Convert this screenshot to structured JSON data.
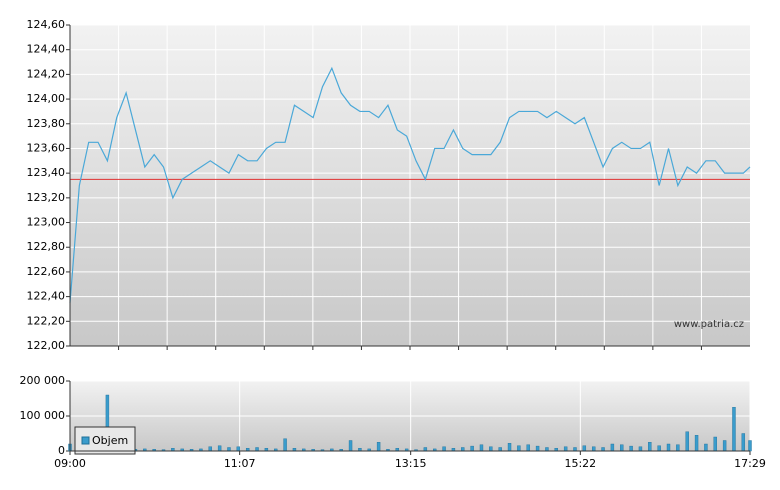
{
  "chart_data": [
    {
      "type": "line",
      "x": [
        "09:00",
        "09:07",
        "09:14",
        "09:21",
        "09:28",
        "09:35",
        "09:42",
        "09:49",
        "09:56",
        "10:03",
        "10:10",
        "10:17",
        "10:24",
        "10:31",
        "10:38",
        "10:45",
        "10:52",
        "10:59",
        "11:06",
        "11:13",
        "11:20",
        "11:27",
        "11:34",
        "11:41",
        "11:48",
        "11:55",
        "12:02",
        "12:09",
        "12:16",
        "12:23",
        "12:30",
        "12:37",
        "12:44",
        "12:51",
        "12:58",
        "13:05",
        "13:12",
        "13:19",
        "13:26",
        "13:33",
        "13:40",
        "13:47",
        "13:54",
        "14:01",
        "14:08",
        "14:15",
        "14:22",
        "14:29",
        "14:36",
        "14:43",
        "14:50",
        "14:57",
        "15:04",
        "15:11",
        "15:18",
        "15:25",
        "15:32",
        "15:39",
        "15:46",
        "15:53",
        "16:00",
        "16:07",
        "16:14",
        "16:21",
        "16:28",
        "16:35",
        "16:42",
        "16:49",
        "16:56",
        "17:03",
        "17:10",
        "17:17",
        "17:24",
        "17:29"
      ],
      "series": [
        {
          "color": "#4aa8d8",
          "values": [
            122.35,
            123.3,
            123.65,
            123.65,
            123.5,
            123.85,
            124.05,
            123.75,
            123.45,
            123.55,
            123.45,
            123.2,
            123.35,
            123.4,
            123.45,
            123.5,
            123.45,
            123.4,
            123.55,
            123.5,
            123.5,
            123.6,
            123.65,
            123.65,
            123.95,
            123.9,
            123.85,
            124.1,
            124.25,
            124.05,
            123.95,
            123.9,
            123.9,
            123.85,
            123.95,
            123.75,
            123.7,
            123.5,
            123.35,
            123.6,
            123.6,
            123.75,
            123.6,
            123.55,
            123.55,
            123.55,
            123.65,
            123.85,
            123.9,
            123.9,
            123.9,
            123.85,
            123.9,
            123.85,
            123.8,
            123.85,
            123.65,
            123.45,
            123.6,
            123.65,
            123.6,
            123.6,
            123.65,
            123.3,
            123.6,
            123.3,
            123.45,
            123.4,
            123.5,
            123.5,
            123.4,
            123.4,
            123.4,
            123.45
          ]
        }
      ],
      "xlim": [
        "09:00",
        "17:29"
      ],
      "ylim": [
        122,
        124.6
      ],
      "yticks": [
        {
          "value": 122,
          "label": "122,00"
        },
        {
          "value": 122.2,
          "label": "122,20"
        },
        {
          "value": 122.4,
          "label": "122,40"
        },
        {
          "value": 122.6,
          "label": "122,60"
        },
        {
          "value": 122.8,
          "label": "122,80"
        },
        {
          "value": 123,
          "label": "123,00"
        },
        {
          "value": 123.2,
          "label": "123,20"
        },
        {
          "value": 123.4,
          "label": "123,40"
        },
        {
          "value": 123.6,
          "label": "123,60"
        },
        {
          "value": 123.8,
          "label": "123,80"
        },
        {
          "value": 124,
          "label": "124,00"
        },
        {
          "value": 124.2,
          "label": "124,20"
        },
        {
          "value": 124.4,
          "label": "124,40"
        },
        {
          "value": 124.6,
          "label": "124,60"
        }
      ],
      "reference_line": {
        "value": 123.35,
        "color": "#e03030"
      },
      "annotation": "www.patria.cz",
      "grid": true
    },
    {
      "type": "bar",
      "x": [
        "09:00",
        "09:07",
        "09:14",
        "09:21",
        "09:28",
        "09:35",
        "09:42",
        "09:49",
        "09:56",
        "10:03",
        "10:10",
        "10:17",
        "10:24",
        "10:31",
        "10:38",
        "10:45",
        "10:52",
        "10:59",
        "11:06",
        "11:13",
        "11:20",
        "11:27",
        "11:34",
        "11:41",
        "11:48",
        "11:55",
        "12:02",
        "12:09",
        "12:16",
        "12:23",
        "12:30",
        "12:37",
        "12:44",
        "12:51",
        "12:58",
        "13:05",
        "13:12",
        "13:19",
        "13:26",
        "13:33",
        "13:40",
        "13:47",
        "13:54",
        "14:01",
        "14:08",
        "14:15",
        "14:22",
        "14:29",
        "14:36",
        "14:43",
        "14:50",
        "14:57",
        "15:04",
        "15:11",
        "15:18",
        "15:25",
        "15:32",
        "15:39",
        "15:46",
        "15:53",
        "16:00",
        "16:07",
        "16:14",
        "16:21",
        "16:28",
        "16:35",
        "16:42",
        "16:49",
        "16:56",
        "17:03",
        "17:10",
        "17:17",
        "17:24",
        "17:29"
      ],
      "series": [
        {
          "name": "Objem",
          "color": "#3a9ccc",
          "values": [
            20000,
            12000,
            8000,
            10000,
            160000,
            15000,
            8000,
            5000,
            6000,
            5000,
            4000,
            8000,
            6000,
            5000,
            6000,
            12000,
            15000,
            10000,
            12000,
            8000,
            10000,
            8000,
            6000,
            35000,
            8000,
            6000,
            5000,
            4000,
            6000,
            5000,
            30000,
            8000,
            6000,
            25000,
            5000,
            8000,
            6000,
            4000,
            10000,
            6000,
            12000,
            8000,
            10000,
            14000,
            18000,
            12000,
            10000,
            22000,
            15000,
            18000,
            14000,
            10000,
            8000,
            12000,
            10000,
            15000,
            12000,
            10000,
            20000,
            18000,
            14000,
            12000,
            25000,
            15000,
            20000,
            18000,
            55000,
            45000,
            20000,
            40000,
            30000,
            125000,
            50000,
            30000
          ]
        }
      ],
      "xlim": [
        "09:00",
        "17:29"
      ],
      "xticks": [
        "09:00",
        "11:07",
        "13:15",
        "15:22",
        "17:29"
      ],
      "ylim": [
        0,
        200000
      ],
      "yticks": [
        {
          "value": 0,
          "label": "0"
        },
        {
          "value": 100000,
          "label": "100 000"
        },
        {
          "value": 200000,
          "label": "200 000"
        }
      ],
      "legend": "lower left",
      "grid": true
    }
  ]
}
